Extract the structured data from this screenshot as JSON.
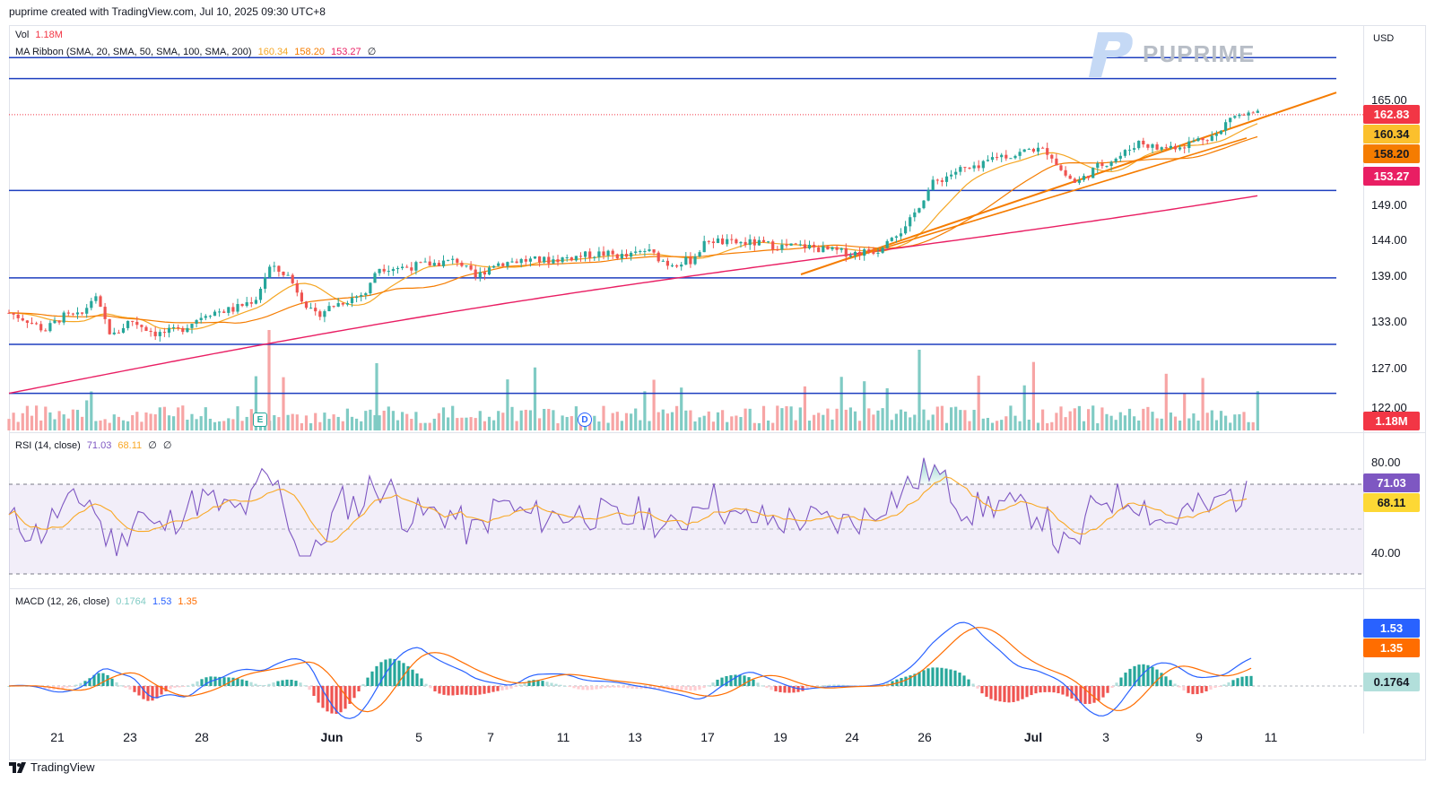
{
  "header": {
    "caption": "puprime created with TradingView.com, Jul 10, 2025 09:30 UTC+8"
  },
  "brand": {
    "logo_text": "PUPRIME",
    "footer_text": "TradingView"
  },
  "currency": "USD",
  "legend_price": {
    "vol_label": "Vol",
    "vol_value": "1.18M",
    "ma_label": "MA Ribbon (SMA, 20, SMA, 50, SMA, 100, SMA, 200)",
    "ma20": "160.34",
    "ma50": "158.20",
    "ma100": "153.27",
    "ma200": "∅"
  },
  "legend_rsi": {
    "label": "RSI (14, close)",
    "rsi": "71.03",
    "rsi_ma": "68.11",
    "extra1": "∅",
    "extra2": "∅"
  },
  "legend_macd": {
    "label": "MACD (12, 26, close)",
    "hist": "0.1764",
    "macd": "1.53",
    "signal": "1.35"
  },
  "price_axis_ticks": [
    "165.00",
    "149.00",
    "144.00",
    "139.00",
    "133.00",
    "127.00",
    "122.00"
  ],
  "price_tags": {
    "last": "162.83",
    "ma20": "160.34",
    "ma50": "158.20",
    "ma100": "153.27",
    "volume": "1.18M"
  },
  "rsi_axis_ticks": [
    "80.00",
    "40.00"
  ],
  "rsi_tags": {
    "rsi": "71.03",
    "rsi_ma": "68.11"
  },
  "macd_tags": {
    "macd": "1.53",
    "signal": "1.35",
    "hist": "0.1764"
  },
  "x_axis": [
    {
      "label": "21",
      "bold": false
    },
    {
      "label": "23",
      "bold": false
    },
    {
      "label": "28",
      "bold": false
    },
    {
      "label": "Jun",
      "bold": true
    },
    {
      "label": "5",
      "bold": false
    },
    {
      "label": "7",
      "bold": false
    },
    {
      "label": "11",
      "bold": false
    },
    {
      "label": "13",
      "bold": false
    },
    {
      "label": "17",
      "bold": false
    },
    {
      "label": "19",
      "bold": false
    },
    {
      "label": "24",
      "bold": false
    },
    {
      "label": "26",
      "bold": false
    },
    {
      "label": "Jul",
      "bold": true
    },
    {
      "label": "3",
      "bold": false
    },
    {
      "label": "9",
      "bold": false
    },
    {
      "label": "11",
      "bold": false
    }
  ],
  "events": {
    "earnings": "E",
    "dividend": "D"
  },
  "colors": {
    "up": "#26a69a",
    "down": "#ef5350",
    "ma20": "#f5a623",
    "ma50": "#f57c00",
    "ma100": "#e91e63",
    "hline": "#1e3fbf",
    "trend": "#f57c00",
    "rsi": "#7e57c2",
    "rsi_ma": "#f9a825",
    "macd": "#2962ff",
    "signal": "#ff6d00",
    "hist_up": "#26a69a",
    "hist_down": "#ef5350"
  },
  "chart_data": {
    "type": "candlestick",
    "price_levels": [
      171.0,
      168.0,
      152.0,
      139.5,
      130.0,
      123.0
    ],
    "close_approx": [
      [
        0,
        134.5
      ],
      [
        20,
        133.5
      ],
      [
        40,
        132.0
      ],
      [
        60,
        134.0
      ],
      [
        80,
        134.0
      ],
      [
        95,
        137.0
      ],
      [
        115,
        131.0
      ],
      [
        135,
        133.5
      ],
      [
        165,
        131.5
      ],
      [
        190,
        132.0
      ],
      [
        220,
        134.5
      ],
      [
        250,
        135.0
      ],
      [
        275,
        136.5
      ],
      [
        290,
        141.0
      ],
      [
        310,
        140.0
      ],
      [
        325,
        137.0
      ],
      [
        340,
        134.0
      ],
      [
        360,
        135.5
      ],
      [
        380,
        136.5
      ],
      [
        400,
        137.5
      ],
      [
        410,
        141.0
      ],
      [
        440,
        141.0
      ],
      [
        470,
        141.5
      ],
      [
        500,
        142.0
      ],
      [
        520,
        139.5
      ],
      [
        540,
        141.5
      ],
      [
        570,
        142.0
      ],
      [
        600,
        142.0
      ],
      [
        630,
        142.5
      ],
      [
        660,
        143.0
      ],
      [
        690,
        142.5
      ],
      [
        710,
        143.5
      ],
      [
        735,
        141.5
      ],
      [
        760,
        142.0
      ],
      [
        780,
        145.0
      ],
      [
        800,
        144.5
      ],
      [
        830,
        144.5
      ],
      [
        860,
        144.0
      ],
      [
        890,
        144.0
      ],
      [
        910,
        143.5
      ],
      [
        940,
        143.0
      ],
      [
        970,
        143.5
      ],
      [
        980,
        145.5
      ],
      [
        1000,
        146.5
      ],
      [
        1015,
        150.0
      ],
      [
        1030,
        153.0
      ],
      [
        1060,
        155.0
      ],
      [
        1080,
        155.0
      ],
      [
        1100,
        157.0
      ],
      [
        1120,
        157.0
      ],
      [
        1140,
        158.0
      ],
      [
        1160,
        157.5
      ],
      [
        1175,
        154.5
      ],
      [
        1190,
        153.0
      ],
      [
        1205,
        154.5
      ],
      [
        1215,
        155.5
      ],
      [
        1240,
        157.0
      ],
      [
        1260,
        159.0
      ],
      [
        1280,
        158.0
      ],
      [
        1310,
        158.5
      ],
      [
        1330,
        159.5
      ],
      [
        1350,
        160.0
      ],
      [
        1360,
        162.5
      ],
      [
        1380,
        162.8
      ],
      [
        1395,
        162.83
      ]
    ]
  }
}
